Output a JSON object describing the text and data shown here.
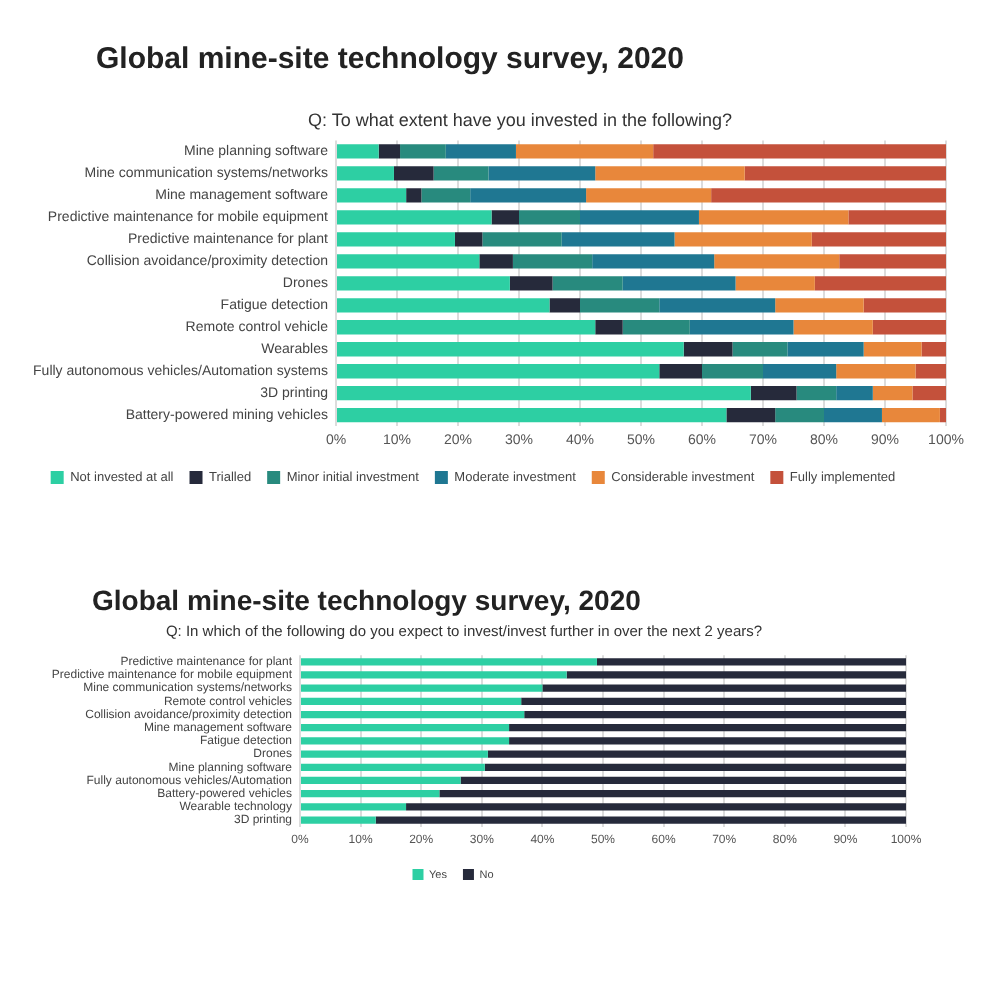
{
  "chart_data": [
    {
      "type": "bar",
      "title": "Global mine-site technology survey, 2020",
      "subtitle": "Q: To what extent have you invested in the following?",
      "orientation": "horizontal",
      "stacked": true,
      "categories": [
        "Mine planning software",
        "Mine communication systems/networks",
        "Mine management software",
        "Predictive maintenance for mobile equipment",
        "Predictive maintenance for plant",
        "Collision avoidance/proximity detection",
        "Drones",
        "Fatigue detection",
        "Remote control vehicle",
        "Wearables",
        "Fully autonomous vehicles/Automation systems",
        "3D printing",
        "Battery-powered mining vehicles"
      ],
      "series": [
        {
          "name": "Not invested at all",
          "color": "#2dcfa3",
          "values": [
            7,
            9.5,
            11.5,
            25.5,
            19.5,
            23.5,
            28.5,
            35,
            42.5,
            57,
            53,
            68,
            64
          ]
        },
        {
          "name": "Trialled",
          "color": "#262a3b",
          "values": [
            3.5,
            6.5,
            2.5,
            4.5,
            4.5,
            5.5,
            7,
            5,
            4.5,
            8,
            7,
            7.5,
            8
          ]
        },
        {
          "name": "Minor initial investment",
          "color": "#288a7e",
          "values": [
            7.5,
            9,
            8,
            10,
            13,
            13,
            11.5,
            13,
            11,
            9,
            10,
            6.5,
            8
          ]
        },
        {
          "name": "Moderate investment",
          "color": "#1f7792",
          "values": [
            11.5,
            17.5,
            19,
            19.5,
            18.5,
            20,
            18.5,
            19,
            17,
            12.5,
            12,
            6,
            9.5
          ]
        },
        {
          "name": "Considerable investment",
          "color": "#e8873b",
          "values": [
            22.5,
            24.5,
            20.5,
            24.5,
            22.5,
            20.5,
            13,
            14.5,
            13,
            9.5,
            13,
            6.5,
            9.5
          ]
        },
        {
          "name": "Fully implemented",
          "color": "#c4513b",
          "values": [
            48,
            33,
            38.5,
            16,
            22,
            17.5,
            21.5,
            13.5,
            12,
            4,
            5,
            5.5,
            1
          ]
        }
      ],
      "xlim": [
        0,
        100
      ],
      "xticks": [
        {
          "value": 0,
          "label": "0%"
        },
        {
          "value": 10,
          "label": "10%"
        },
        {
          "value": 20,
          "label": "20%"
        },
        {
          "value": 30,
          "label": "30%"
        },
        {
          "value": 40,
          "label": "40%"
        },
        {
          "value": 50,
          "label": "50%"
        },
        {
          "value": 60,
          "label": "60%"
        },
        {
          "value": 70,
          "label": "70%"
        },
        {
          "value": 80,
          "label": "80%"
        },
        {
          "value": 90,
          "label": "90%"
        },
        {
          "value": 100,
          "label": "100%"
        }
      ],
      "grid": "x",
      "legend": "bottom"
    },
    {
      "type": "bar",
      "title": "Global mine-site technology survey, 2020",
      "subtitle": "Q: In which of the following do you expect to invest/invest further in over the next 2 years?",
      "orientation": "horizontal",
      "stacked": true,
      "categories": [
        "Predictive maintenance for plant",
        "Predictive maintenance for mobile equipment",
        "Mine communication systems/networks",
        "Remote control vehicles",
        "Collision avoidance/proximity detection",
        "Mine management software",
        "Fatigue detection",
        "Drones",
        "Mine planning software",
        "Fully autonomous vehicles/Automation",
        "Battery-powered vehicles",
        "Wearable technology",
        "3D printing"
      ],
      "series": [
        {
          "name": "Yes",
          "color": "#2dcfa3",
          "values": [
            49,
            44,
            40,
            36.5,
            37,
            34.5,
            34.5,
            31,
            30.5,
            26.5,
            23,
            17.5,
            12.5
          ]
        },
        {
          "name": "No",
          "color": "#262a3b",
          "values": [
            51,
            56,
            60,
            63.5,
            63,
            65.5,
            65.5,
            69,
            69.5,
            73.5,
            77,
            82.5,
            87.5
          ]
        }
      ],
      "xlim": [
        0,
        100
      ],
      "xticks": [
        {
          "value": 0,
          "label": "0%"
        },
        {
          "value": 10,
          "label": "10%"
        },
        {
          "value": 20,
          "label": "20%"
        },
        {
          "value": 30,
          "label": "30%"
        },
        {
          "value": 40,
          "label": "40%"
        },
        {
          "value": 50,
          "label": "50%"
        },
        {
          "value": 60,
          "label": "60%"
        },
        {
          "value": 70,
          "label": "70%"
        },
        {
          "value": 80,
          "label": "80%"
        },
        {
          "value": 90,
          "label": "90%"
        },
        {
          "value": 100,
          "label": "100%"
        }
      ],
      "grid": "x",
      "legend": "bottom"
    }
  ]
}
